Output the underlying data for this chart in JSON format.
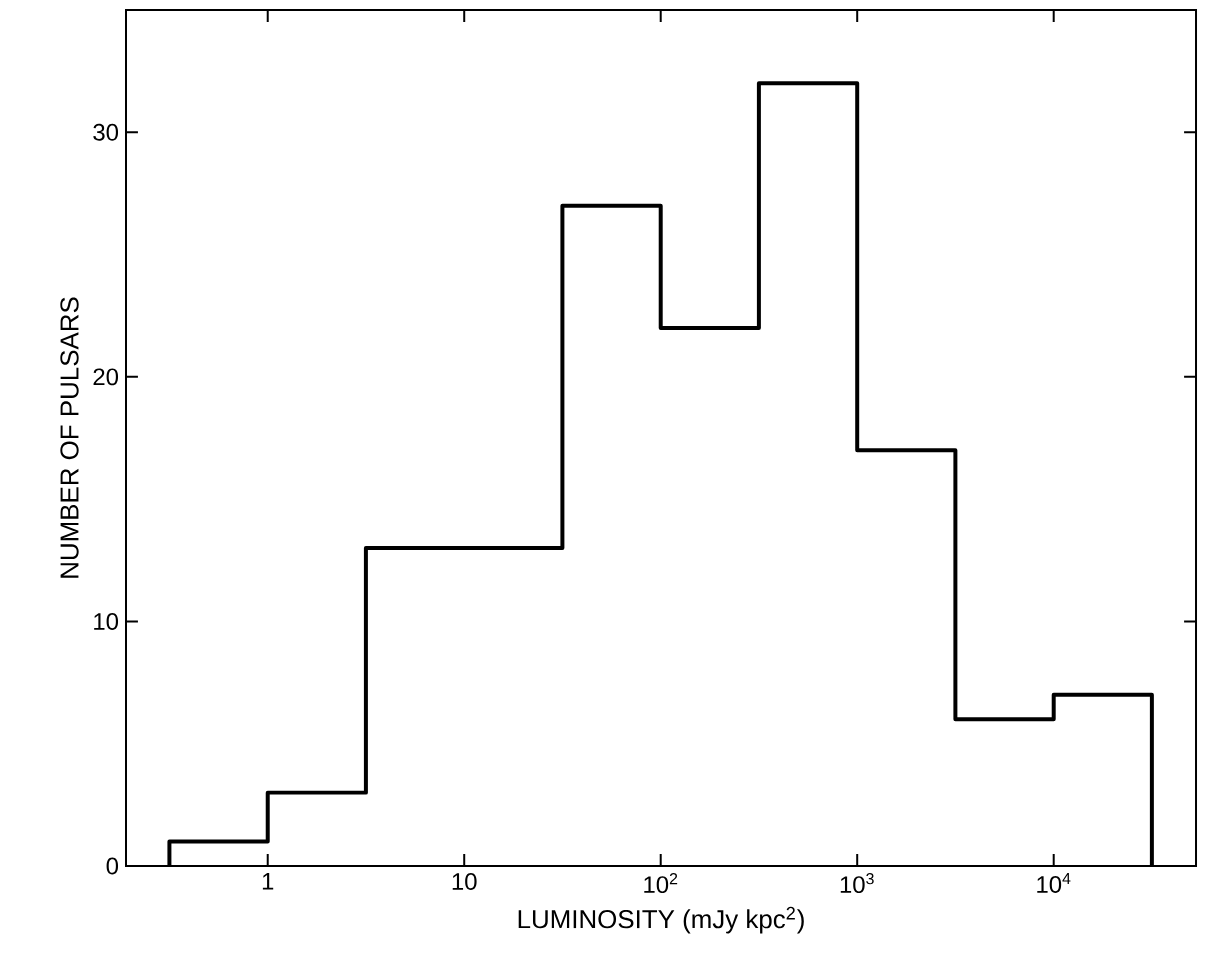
{
  "chart_data": {
    "type": "histogram",
    "xlabel": "LUMINOSITY  (mJy  kpc$^{2}$)",
    "ylabel": "NUMBER  OF  PULSARS",
    "bins": [
      0.316,
      1,
      3.16,
      10,
      31.6,
      100,
      316,
      1000,
      3160,
      10000,
      31600
    ],
    "values": [
      1,
      3,
      13,
      13,
      27,
      22,
      32,
      17,
      6,
      7
    ],
    "color": "#000000",
    "log": "x",
    "grid": false,
    "xlim": [
      0.19,
      53000
    ],
    "ylim": [
      0,
      35
    ],
    "xticks": [
      1,
      10,
      {
        "value": 100,
        "label": "10$^{2}$"
      },
      {
        "value": 1000,
        "label": "10$^{3}$"
      },
      {
        "value": 10000,
        "label": "10$^{4}$"
      }
    ],
    "yticks": [
      0,
      10,
      20,
      30
    ]
  }
}
